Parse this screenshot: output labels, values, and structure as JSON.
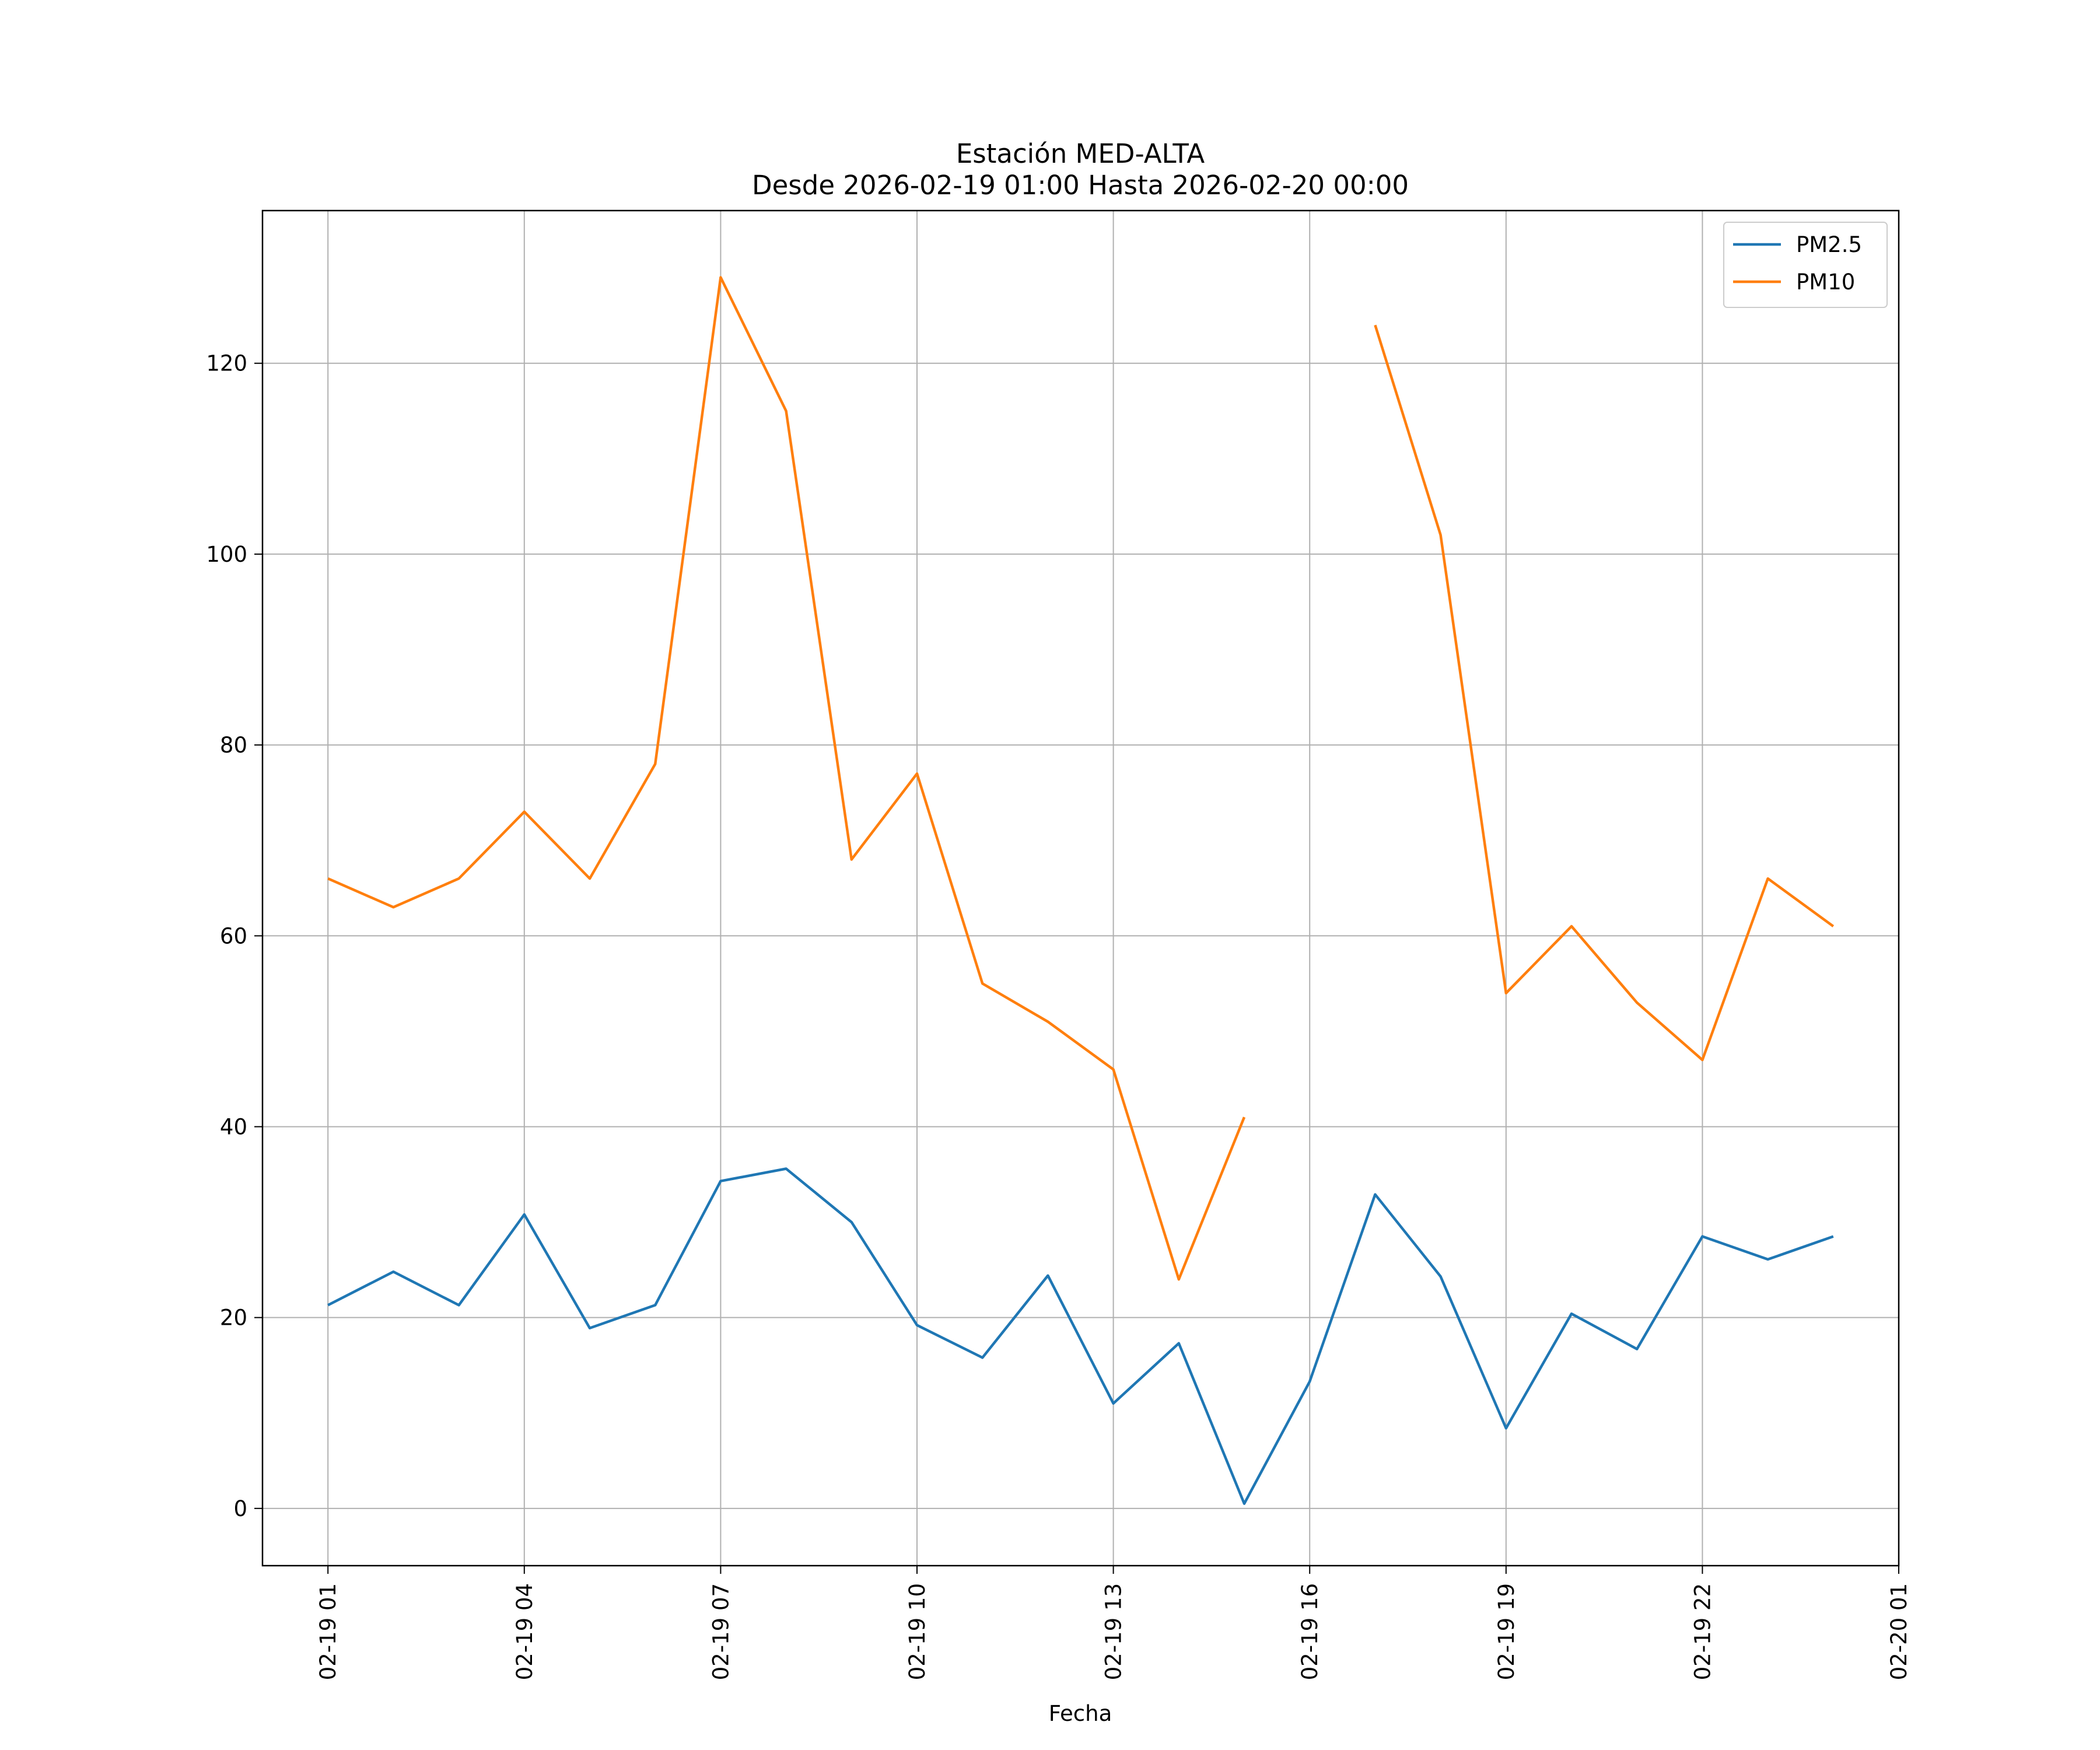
{
  "chart_data": {
    "type": "line",
    "title": "Estación MED-ALTA",
    "subtitle": "Desde 2026-02-19 01:00 Hasta 2026-02-20 00:00",
    "xlabel": "Fecha",
    "ylabel": "",
    "x_unit": "hour",
    "x": [
      "2026-02-19 01:00",
      "2026-02-19 02:00",
      "2026-02-19 03:00",
      "2026-02-19 04:00",
      "2026-02-19 05:00",
      "2026-02-19 06:00",
      "2026-02-19 07:00",
      "2026-02-19 08:00",
      "2026-02-19 09:00",
      "2026-02-19 10:00",
      "2026-02-19 11:00",
      "2026-02-19 12:00",
      "2026-02-19 13:00",
      "2026-02-19 14:00",
      "2026-02-19 15:00",
      "2026-02-19 16:00",
      "2026-02-19 17:00",
      "2026-02-19 18:00",
      "2026-02-19 19:00",
      "2026-02-19 20:00",
      "2026-02-19 21:00",
      "2026-02-19 22:00",
      "2026-02-19 23:00",
      "2026-02-20 00:00"
    ],
    "xlim": [
      "2026-02-19 00:00",
      "2026-02-20 01:00"
    ],
    "xticks": [
      "2026-02-19 01:00",
      "2026-02-19 04:00",
      "2026-02-19 07:00",
      "2026-02-19 10:00",
      "2026-02-19 13:00",
      "2026-02-19 16:00",
      "2026-02-19 19:00",
      "2026-02-19 22:00",
      "2026-02-20 01:00"
    ],
    "xtick_labels": [
      "02-19 01",
      "02-19 04",
      "02-19 07",
      "02-19 10",
      "02-19 13",
      "02-19 16",
      "02-19 19",
      "02-19 22",
      "02-20 01"
    ],
    "ylim": [
      -6,
      136
    ],
    "yticks": [
      0,
      20,
      40,
      60,
      80,
      100,
      120
    ],
    "ytick_labels": [
      "0",
      "20",
      "40",
      "60",
      "80",
      "100",
      "120"
    ],
    "grid": true,
    "legend_position": "top-right",
    "series": [
      {
        "name": "PM2.5",
        "color": "#1f77b4",
        "values": [
          21.3,
          24.8,
          21.3,
          30.8,
          18.9,
          21.3,
          34.3,
          35.6,
          30.0,
          19.2,
          15.8,
          24.4,
          11.0,
          17.3,
          0.5,
          13.3,
          32.9,
          24.3,
          8.4,
          20.4,
          16.7,
          28.5,
          26.1,
          28.5
        ]
      },
      {
        "name": "PM10",
        "color": "#ff7f0e",
        "values": [
          66,
          63,
          66,
          73,
          66,
          78,
          129,
          115,
          68,
          77,
          55,
          51,
          46,
          24,
          41,
          null,
          124,
          102,
          54,
          61,
          53,
          47,
          66,
          61
        ]
      }
    ]
  }
}
